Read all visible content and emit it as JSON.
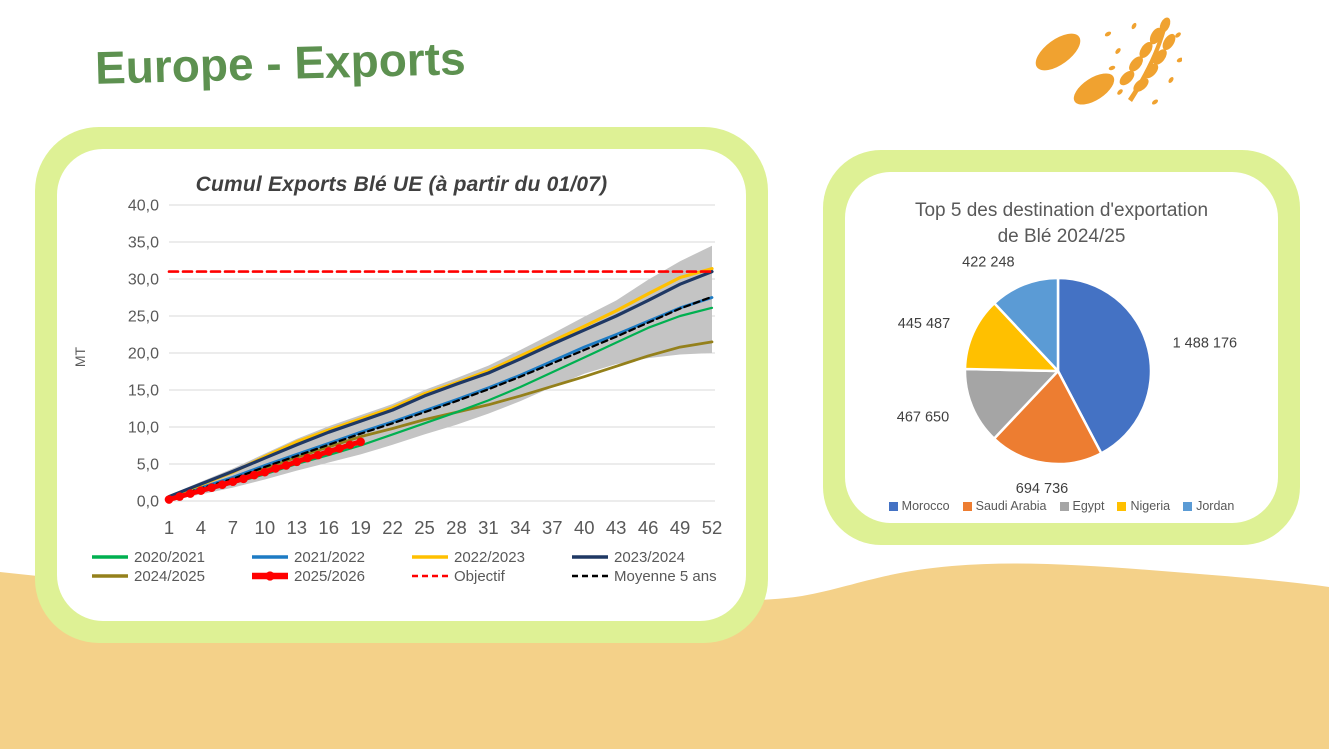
{
  "header": {
    "title": "Europe - Exports",
    "icon": "wheat-icon"
  },
  "colors": {
    "title_green": "#5d9150",
    "card_border": "#def195",
    "sand": "#f4d189",
    "band_gray": "#c4c4c4",
    "axis_text": "#595959",
    "grid_line": "#d9d9d9"
  },
  "chart_data": [
    {
      "type": "line",
      "title": "Cumul Exports Blé UE (à partir du 01/07)",
      "ylabel": "MT",
      "xlabel": "",
      "ylim": [
        0,
        40
      ],
      "ytick_step": 5,
      "grid": true,
      "legend_position": "bottom",
      "xticks": [
        1,
        4,
        7,
        10,
        13,
        16,
        19,
        22,
        25,
        28,
        31,
        34,
        37,
        40,
        43,
        46,
        49,
        52
      ],
      "series": [
        {
          "name": "2020/2021",
          "color": "#00b050",
          "style": "solid",
          "width": 2.2,
          "z": 2,
          "x": [
            1,
            4,
            7,
            10,
            13,
            16,
            19,
            22,
            25,
            28,
            31,
            34,
            37,
            40,
            43,
            46,
            49,
            52
          ],
          "values": [
            0.3,
            1.3,
            2.4,
            3.6,
            5.0,
            6.2,
            7.5,
            9.0,
            10.5,
            12.0,
            13.6,
            15.4,
            17.4,
            19.4,
            21.4,
            23.4,
            25.0,
            26.1
          ]
        },
        {
          "name": "2021/2022",
          "color": "#1d7bc4",
          "style": "solid",
          "width": 2.8,
          "z": 3,
          "x": [
            1,
            4,
            7,
            10,
            13,
            16,
            19,
            22,
            25,
            28,
            31,
            34,
            37,
            40,
            43,
            46,
            49,
            52
          ],
          "values": [
            0.4,
            1.8,
            3.2,
            4.8,
            6.3,
            7.8,
            9.3,
            10.7,
            12.2,
            13.7,
            15.3,
            17.0,
            18.9,
            20.8,
            22.5,
            24.3,
            26.1,
            27.5
          ]
        },
        {
          "name": "2022/2023",
          "color": "#ffc000",
          "style": "solid",
          "width": 3.2,
          "z": 5,
          "x": [
            1,
            4,
            7,
            10,
            13,
            16,
            19,
            22,
            25,
            28,
            31,
            34,
            37,
            40,
            43,
            46,
            49,
            52
          ],
          "values": [
            0.5,
            2.2,
            3.9,
            6.0,
            8.0,
            9.6,
            11.1,
            12.6,
            14.5,
            16.0,
            17.6,
            19.6,
            21.6,
            23.6,
            25.7,
            28.0,
            30.2,
            31.4
          ]
        },
        {
          "name": "2023/2024",
          "color": "#1f3864",
          "style": "solid",
          "width": 3.2,
          "z": 6,
          "x": [
            1,
            4,
            7,
            10,
            13,
            16,
            19,
            22,
            25,
            28,
            31,
            34,
            37,
            40,
            43,
            46,
            49,
            52
          ],
          "values": [
            0.6,
            2.3,
            4.0,
            5.8,
            7.6,
            9.3,
            10.8,
            12.3,
            14.2,
            15.8,
            17.3,
            19.2,
            21.2,
            23.1,
            25.0,
            27.1,
            29.3,
            31.0
          ]
        },
        {
          "name": "2024/2025",
          "color": "#94801b",
          "style": "solid",
          "width": 2.8,
          "z": 1,
          "x": [
            1,
            4,
            7,
            10,
            13,
            16,
            19,
            22,
            25,
            28,
            31,
            34,
            37,
            40,
            43,
            46,
            49,
            52
          ],
          "values": [
            0.4,
            1.7,
            3.0,
            4.4,
            5.9,
            7.3,
            8.7,
            9.8,
            11.0,
            12.0,
            13.0,
            14.2,
            15.5,
            16.8,
            18.2,
            19.6,
            20.8,
            21.5
          ]
        },
        {
          "name": "2025/2026",
          "color": "#ff0000",
          "style": "marker",
          "width": 5,
          "z": 8,
          "x": [
            1,
            2,
            3,
            4,
            5,
            6,
            7,
            8,
            9,
            10,
            11,
            12,
            13,
            14,
            15,
            16,
            17,
            18,
            19
          ],
          "values": [
            0.2,
            0.6,
            1.0,
            1.4,
            1.8,
            2.2,
            2.6,
            3.0,
            3.5,
            3.9,
            4.4,
            4.8,
            5.3,
            5.8,
            6.2,
            6.7,
            7.1,
            7.6,
            8.0
          ]
        },
        {
          "name": "Objectif",
          "color": "#ff0000",
          "style": "dashed",
          "width": 2.6,
          "dash": "9,5",
          "z": 7,
          "x": [
            1,
            52
          ],
          "values": [
            31,
            31
          ]
        },
        {
          "name": "Moyenne 5 ans",
          "color": "#000000",
          "style": "dashed",
          "width": 2.2,
          "dash": "6,4",
          "z": 4,
          "x": [
            1,
            4,
            7,
            10,
            13,
            16,
            19,
            22,
            25,
            28,
            31,
            34,
            37,
            40,
            43,
            46,
            49,
            52
          ],
          "values": [
            0.4,
            1.7,
            3.0,
            4.6,
            6.1,
            7.6,
            9.1,
            10.5,
            12.0,
            13.5,
            15.1,
            16.8,
            18.6,
            20.4,
            22.2,
            24.1,
            26.0,
            27.6
          ]
        }
      ],
      "band": {
        "name": "min-max 5 ans",
        "color": "#c4c4c4",
        "x": [
          1,
          4,
          7,
          10,
          13,
          16,
          19,
          22,
          25,
          28,
          31,
          34,
          37,
          40,
          43,
          46,
          49,
          52
        ],
        "top": [
          0.8,
          2.6,
          4.4,
          6.4,
          8.4,
          10.1,
          11.6,
          13.1,
          15.0,
          16.6,
          18.3,
          20.4,
          22.6,
          24.9,
          27.1,
          29.9,
          32.4,
          34.5
        ],
        "bottom": [
          0.1,
          0.9,
          1.8,
          2.9,
          4.1,
          5.2,
          6.3,
          7.6,
          9.0,
          10.3,
          11.8,
          13.5,
          15.4,
          17.2,
          18.5,
          19.3,
          19.8,
          20.0
        ]
      }
    },
    {
      "type": "pie",
      "title_line1": "Top 5 des destination d'exportation",
      "title_line2": "de Blé 2024/25",
      "legend_position": "bottom",
      "direction": "clockwise",
      "start_angle_deg": 0,
      "slices": [
        {
          "label": "Morocco",
          "value": 1488176,
          "display": "1 488 176",
          "color": "#4472c4"
        },
        {
          "label": "Saudi Arabia",
          "value": 694736,
          "display": "694 736",
          "color": "#ed7d31"
        },
        {
          "label": "Egypt",
          "value": 467650,
          "display": "467 650",
          "color": "#a5a5a5"
        },
        {
          "label": "Nigeria",
          "value": 445487,
          "display": "445 487",
          "color": "#ffc000"
        },
        {
          "label": "Jordan",
          "value": 422248,
          "display": "422 248",
          "color": "#5b9bd5"
        }
      ]
    }
  ]
}
